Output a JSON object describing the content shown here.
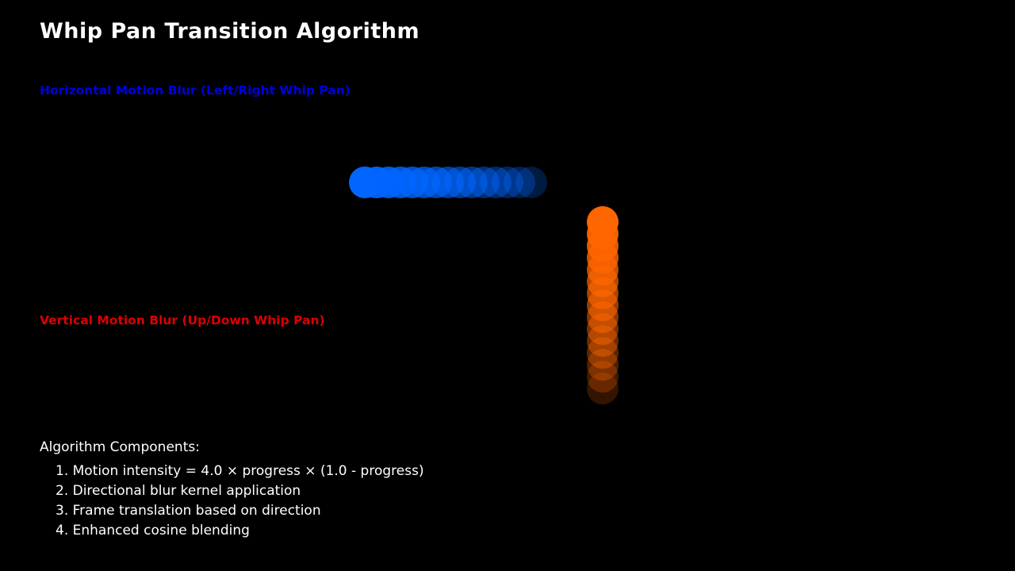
{
  "title": "Whip Pan Transition Algorithm",
  "horizontal": {
    "label": "Horizontal Motion Blur (Left/Right Whip Pan)",
    "label_color": "#0000dd",
    "circle_color": "#0066ff",
    "ghost_count": 15,
    "opacity_range": [
      1.0,
      0.25
    ]
  },
  "vertical": {
    "label": "Vertical Motion Blur (Up/Down Whip Pan)",
    "label_color": "#dd0000",
    "circle_color": "#ff6600",
    "ghost_count": 15,
    "opacity_range": [
      1.0,
      0.2
    ]
  },
  "components": {
    "heading": "Algorithm Components:",
    "items": [
      "1. Motion intensity = 4.0 × progress × (1.0 - progress)",
      "2. Directional blur kernel application",
      "3. Frame translation based on direction",
      "4. Enhanced cosine blending"
    ]
  }
}
